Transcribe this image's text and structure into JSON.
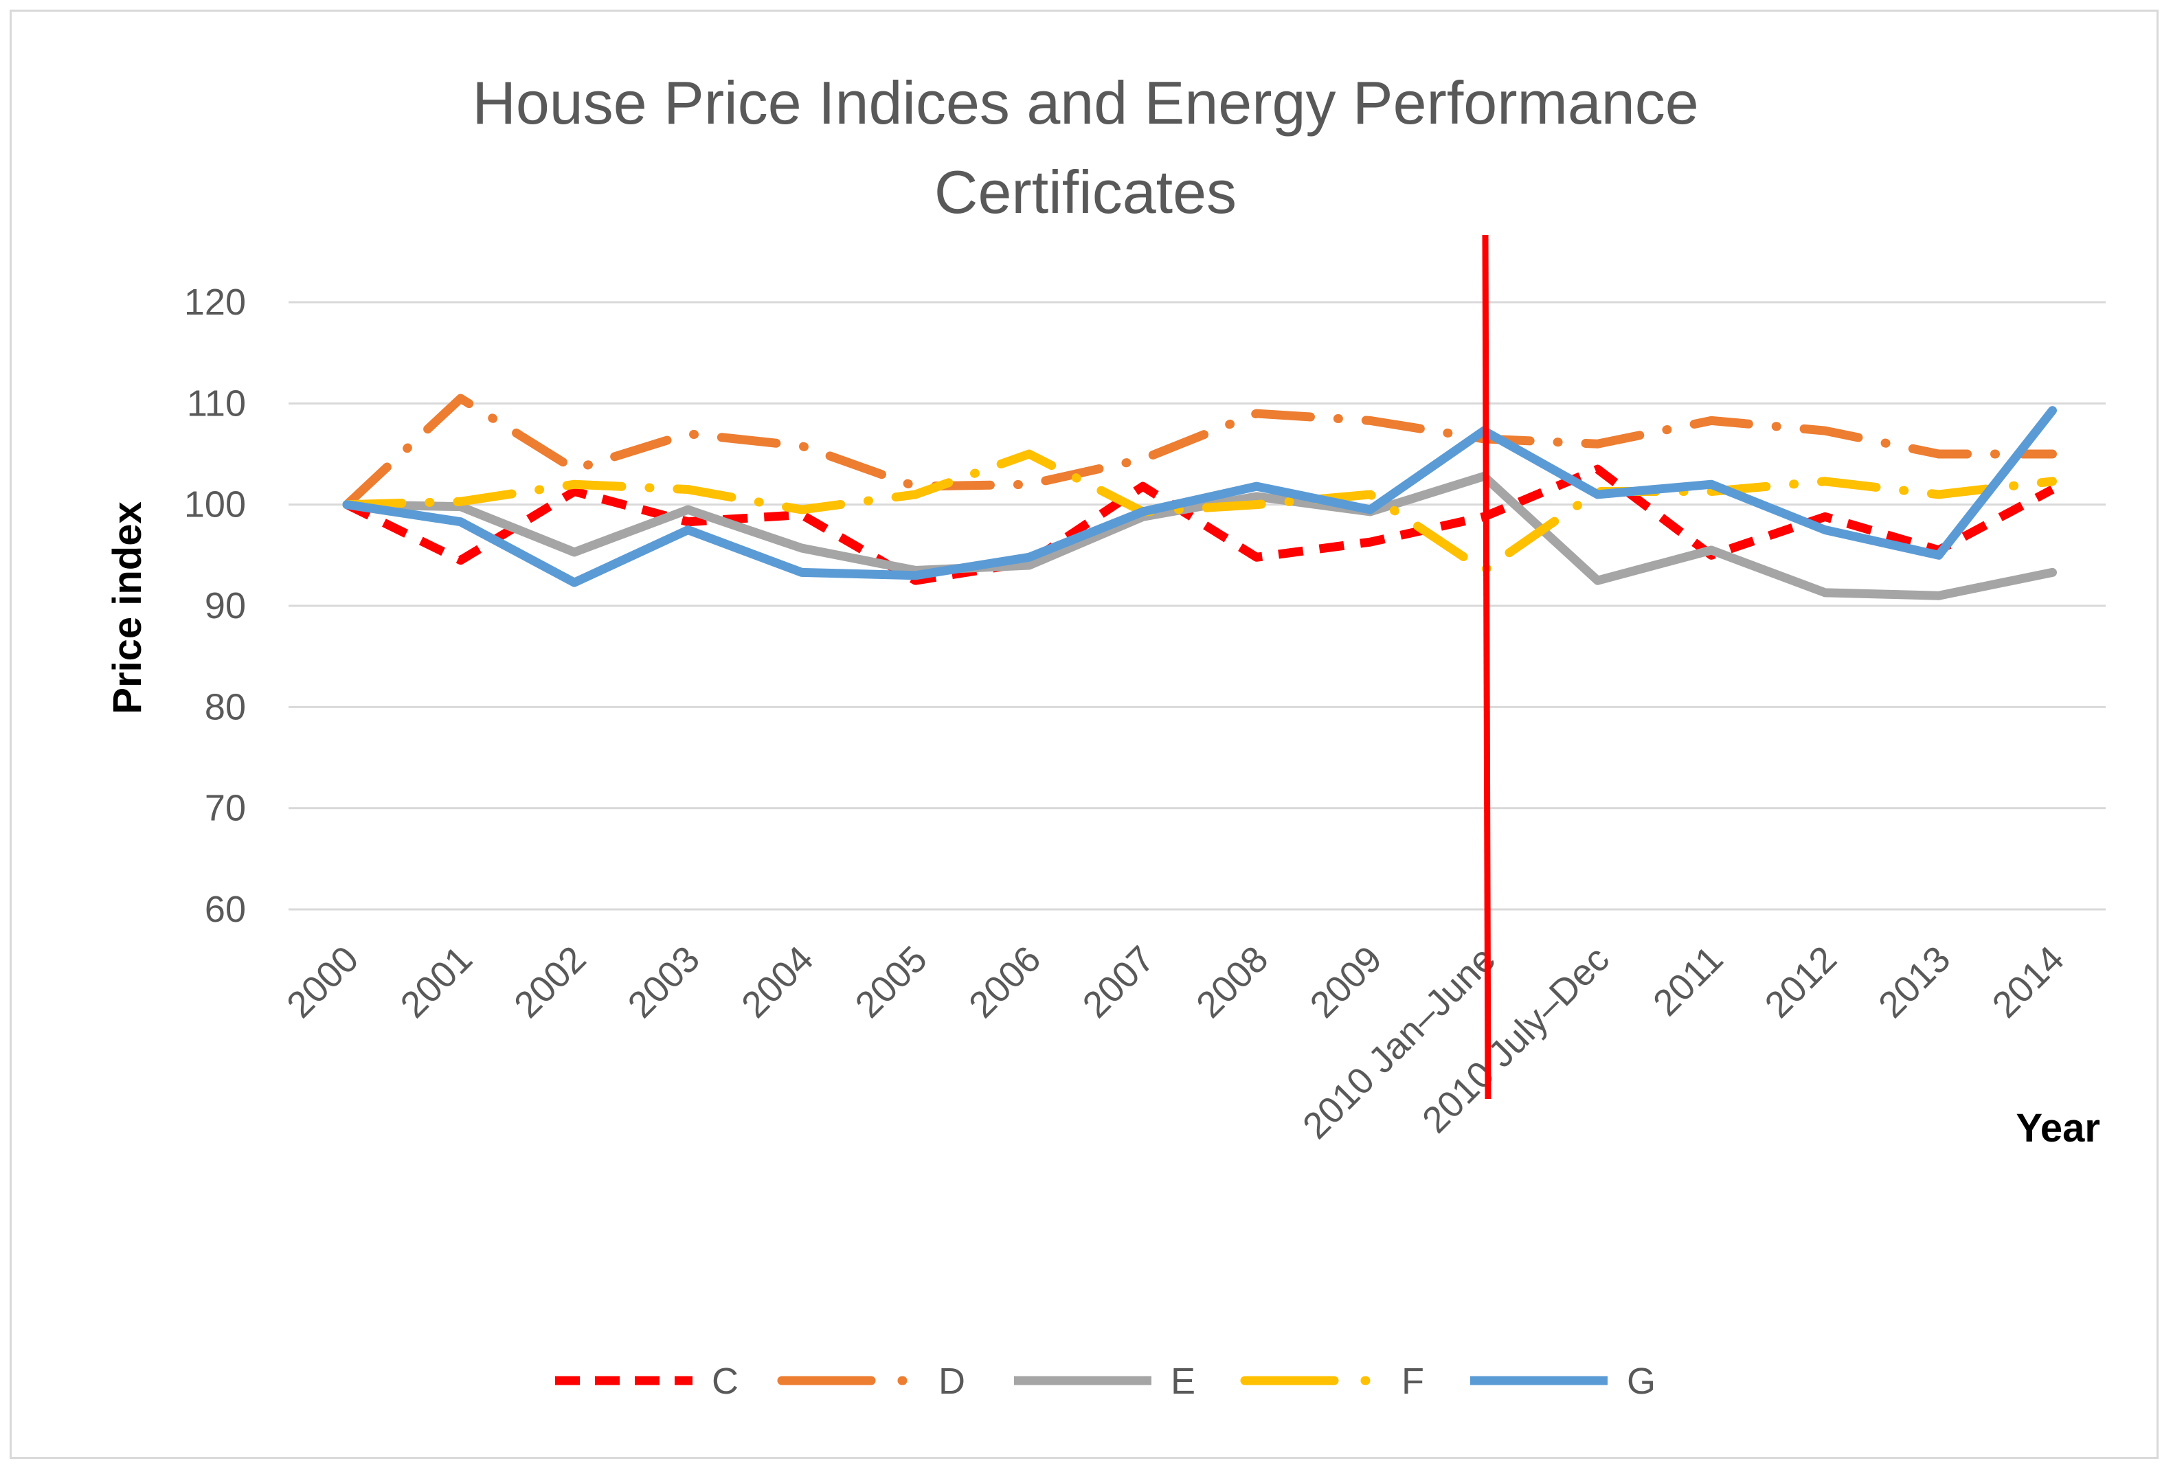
{
  "chart_data": {
    "type": "line",
    "title": "House Price Indices and Energy Performance Certificates",
    "title_lines": [
      "House Price Indices and Energy Performance",
      "Certificates"
    ],
    "xlabel": "Year",
    "ylabel": "Price index",
    "ylim": [
      60,
      120
    ],
    "yticks": [
      60,
      70,
      80,
      90,
      100,
      110,
      120
    ],
    "grid": true,
    "legend_position": "bottom",
    "categories": [
      "2000",
      "2001",
      "2002",
      "2003",
      "2004",
      "2005",
      "2006",
      "2007",
      "2008",
      "2009",
      "2010 Jan–June",
      "2010 July–Dec",
      "2011",
      "2012",
      "2013",
      "2014"
    ],
    "marker_line": {
      "category": "2010 Jan–June",
      "color": "#ff0000"
    },
    "series": [
      {
        "name": "C",
        "color": "#ff0000",
        "style": "dashed",
        "values": [
          100,
          94.5,
          101.3,
          98.3,
          99.0,
          92.5,
          94.3,
          101.8,
          94.8,
          96.3,
          98.8,
          103.5,
          95.0,
          98.8,
          95.5,
          101.5
        ]
      },
      {
        "name": "D",
        "color": "#ed7d31",
        "style": "long-dash-dot",
        "values": [
          100,
          110.5,
          103.5,
          107.0,
          105.8,
          101.8,
          102.0,
          104.5,
          109.0,
          108.3,
          106.5,
          106.0,
          108.3,
          107.3,
          105.0,
          105.0
        ]
      },
      {
        "name": "E",
        "color": "#a5a5a5",
        "style": "solid",
        "values": [
          100,
          99.8,
          95.3,
          99.5,
          95.7,
          93.5,
          94.0,
          98.8,
          100.8,
          99.3,
          102.8,
          92.5,
          95.5,
          91.3,
          91.0,
          93.3
        ]
      },
      {
        "name": "F",
        "color": "#ffc000",
        "style": "long-dash-dot",
        "values": [
          100,
          100.3,
          102.0,
          101.5,
          99.5,
          101.0,
          105.0,
          99.3,
          100.0,
          101.0,
          93.5,
          101.3,
          101.3,
          102.3,
          101.0,
          102.3
        ]
      },
      {
        "name": "G",
        "color": "#5b9bd5",
        "style": "solid",
        "values": [
          100,
          98.3,
          92.3,
          97.5,
          93.3,
          93.0,
          94.8,
          99.3,
          101.8,
          99.5,
          107.3,
          101.0,
          102.0,
          97.5,
          95.0,
          109.3
        ]
      }
    ]
  }
}
